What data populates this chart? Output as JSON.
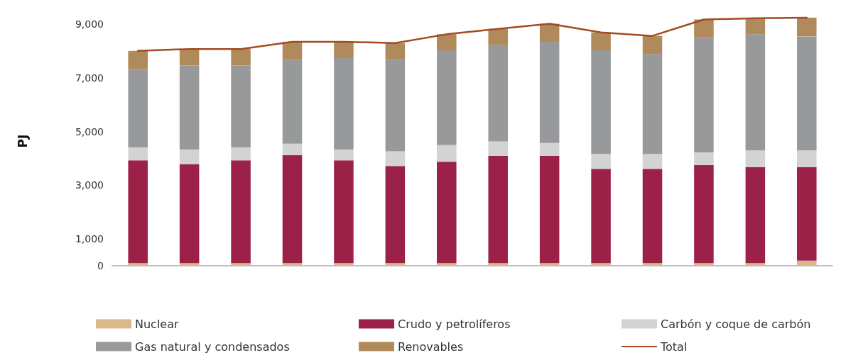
{
  "chart_data": {
    "type": "bar",
    "stacked": true,
    "ylabel": "PJ",
    "categories": [
      null,
      null,
      null,
      null,
      null,
      null,
      null,
      null,
      null,
      null,
      null,
      null,
      null,
      null
    ],
    "series": [
      {
        "name": "Nuclear",
        "color": "#d9b98c",
        "values": [
          100,
          100,
          100,
          100,
          100,
          100,
          100,
          100,
          100,
          100,
          100,
          100,
          100,
          190
        ]
      },
      {
        "name": "Crudo y petrolíferos",
        "color": "#9b2148",
        "values": [
          3830,
          3690,
          3830,
          4020,
          3830,
          3620,
          3780,
          4000,
          4000,
          3510,
          3510,
          3650,
          3580,
          3490
        ]
      },
      {
        "name": "Carbón y coque de carbón",
        "color": "#d3d3d3",
        "values": [
          480,
          540,
          480,
          430,
          400,
          550,
          620,
          540,
          480,
          560,
          560,
          480,
          620,
          620
        ]
      },
      {
        "name": "Gas natural y condensados",
        "color": "#98999b",
        "values": [
          2920,
          3130,
          3050,
          3130,
          3410,
          3410,
          3530,
          3580,
          3770,
          3860,
          3720,
          4260,
          4330,
          4250
        ]
      },
      {
        "name": "Renovables",
        "color": "#b08a5a",
        "values": [
          680,
          620,
          620,
          670,
          610,
          620,
          600,
          610,
          670,
          670,
          680,
          690,
          600,
          700
        ]
      },
      {
        "name": "Total",
        "type": "line",
        "color": "#a34a1f",
        "marker": "none",
        "line_style": "solid",
        "values": [
          8010,
          8080,
          8080,
          8350,
          8350,
          8300,
          8630,
          8830,
          9020,
          8700,
          8570,
          9180,
          9230,
          9250
        ]
      }
    ],
    "ylim": [
      0,
      9300
    ],
    "yticks": [
      0,
      {
        "value": 1000,
        "label": "1,000"
      },
      {
        "value": 3000,
        "label": "3,000"
      },
      {
        "value": 5000,
        "label": "5,000"
      },
      {
        "value": 7000,
        "label": "7,000"
      },
      {
        "value": 9000,
        "label": "9,000"
      }
    ],
    "grid": false,
    "legend": "bottom"
  }
}
